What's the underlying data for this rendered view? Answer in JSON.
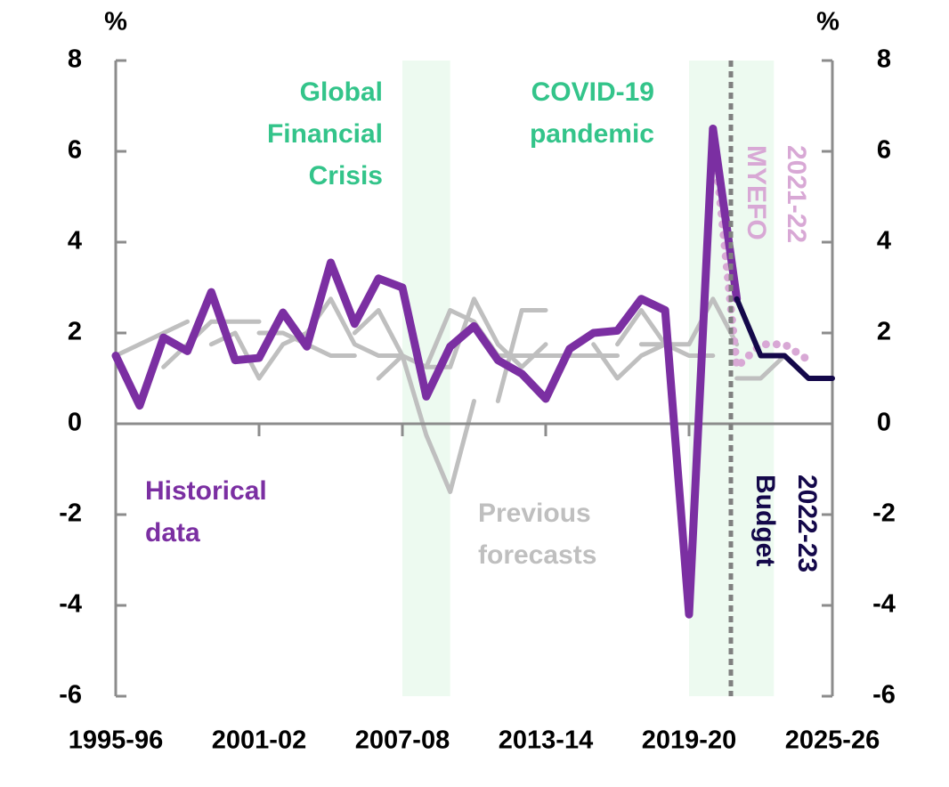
{
  "chart_data": {
    "type": "line",
    "y_label": "%",
    "y2_label": "%",
    "categories": [
      "1995-96",
      null,
      null,
      null,
      null,
      null,
      "2001-02",
      null,
      null,
      null,
      null,
      null,
      "2007-08",
      null,
      null,
      null,
      null,
      null,
      "2013-14",
      null,
      null,
      null,
      null,
      null,
      "2019-20",
      null,
      null,
      null,
      null,
      null,
      "2025-26"
    ],
    "ylim": [
      -6,
      8
    ],
    "yticks": [
      -6,
      -4,
      -2,
      0,
      2,
      4,
      6,
      8
    ],
    "y2lim": [
      -6,
      8
    ],
    "y2ticks": [
      -6,
      -4,
      -2,
      0,
      2,
      4,
      6,
      8
    ],
    "series": [
      {
        "color": "#bfbfbf",
        "values": [
          1.5,
          1.75,
          2.0,
          2.25,
          null,
          null,
          null,
          null,
          null,
          null,
          null,
          null,
          null,
          null,
          null,
          null,
          null,
          null,
          null,
          null,
          null,
          null,
          null,
          null,
          null,
          null,
          null,
          null,
          null,
          null,
          null
        ]
      },
      {
        "color": "#bfbfbf",
        "values": [
          null,
          null,
          1.25,
          1.75,
          2.25,
          2.25,
          2.25,
          null,
          null,
          null,
          null,
          null,
          null,
          null,
          null,
          null,
          null,
          null,
          null,
          null,
          null,
          null,
          null,
          null,
          null,
          null,
          null,
          null,
          null,
          null,
          null
        ]
      },
      {
        "color": "#bfbfbf",
        "values": [
          null,
          null,
          null,
          null,
          1.75,
          2.0,
          1.0,
          1.75,
          2.0,
          null,
          null,
          null,
          null,
          null,
          null,
          null,
          null,
          null,
          null,
          null,
          null,
          null,
          null,
          null,
          null,
          null,
          null,
          null,
          null,
          null,
          null
        ]
      },
      {
        "color": "#bfbfbf",
        "values": [
          null,
          null,
          null,
          null,
          null,
          null,
          2.0,
          2.0,
          1.75,
          1.5,
          1.5,
          null,
          null,
          null,
          null,
          null,
          null,
          null,
          null,
          null,
          null,
          null,
          null,
          null,
          null,
          null,
          null,
          null,
          null,
          null,
          null
        ]
      },
      {
        "color": "#bfbfbf",
        "values": [
          null,
          null,
          null,
          null,
          null,
          null,
          null,
          null,
          2.0,
          2.75,
          1.75,
          1.5,
          1.5,
          null,
          null,
          null,
          null,
          null,
          null,
          null,
          null,
          null,
          null,
          null,
          null,
          null,
          null,
          null,
          null,
          null,
          null
        ]
      },
      {
        "color": "#bfbfbf",
        "values": [
          null,
          null,
          null,
          null,
          null,
          null,
          null,
          null,
          null,
          null,
          2.0,
          2.5,
          1.5,
          1.25,
          1.25,
          null,
          null,
          null,
          null,
          null,
          null,
          null,
          null,
          null,
          null,
          null,
          null,
          null,
          null,
          null,
          null
        ]
      },
      {
        "color": "#bfbfbf",
        "values": [
          null,
          null,
          null,
          null,
          null,
          null,
          null,
          null,
          null,
          null,
          null,
          1.0,
          1.5,
          -0.25,
          -1.5,
          0.5,
          null,
          null,
          null,
          null,
          null,
          null,
          null,
          null,
          null,
          null,
          null,
          null,
          null,
          null,
          null
        ]
      },
      {
        "color": "#bfbfbf",
        "values": [
          null,
          null,
          null,
          null,
          null,
          null,
          null,
          null,
          null,
          null,
          null,
          null,
          null,
          1.25,
          2.5,
          2.25,
          1.5,
          1.5,
          null,
          null,
          null,
          null,
          null,
          null,
          null,
          null,
          null,
          null,
          null,
          null,
          null
        ]
      },
      {
        "color": "#bfbfbf",
        "values": [
          null,
          null,
          null,
          null,
          null,
          null,
          null,
          null,
          null,
          null,
          null,
          null,
          null,
          null,
          1.25,
          2.75,
          1.75,
          1.25,
          1.75,
          null,
          null,
          null,
          null,
          null,
          null,
          null,
          null,
          null,
          null,
          null,
          null
        ]
      },
      {
        "color": "#bfbfbf",
        "values": [
          null,
          null,
          null,
          null,
          null,
          null,
          null,
          null,
          null,
          null,
          null,
          null,
          null,
          null,
          null,
          null,
          0.5,
          2.5,
          2.5,
          null,
          null,
          null,
          null,
          null,
          null,
          null,
          null,
          null,
          null,
          null,
          null
        ]
      },
      {
        "color": "#bfbfbf",
        "values": [
          null,
          null,
          null,
          null,
          null,
          null,
          null,
          null,
          null,
          null,
          null,
          null,
          null,
          null,
          null,
          null,
          null,
          1.5,
          1.5,
          1.5,
          1.5,
          1.5,
          null,
          null,
          null,
          null,
          null,
          null,
          null,
          null,
          null
        ]
      },
      {
        "color": "#bfbfbf",
        "values": [
          null,
          null,
          null,
          null,
          null,
          null,
          null,
          null,
          null,
          null,
          null,
          null,
          null,
          null,
          null,
          null,
          null,
          null,
          null,
          null,
          1.75,
          1.0,
          1.5,
          1.75,
          null,
          null,
          null,
          null,
          null,
          null,
          null
        ]
      },
      {
        "color": "#bfbfbf",
        "values": [
          null,
          null,
          null,
          null,
          null,
          null,
          null,
          null,
          null,
          null,
          null,
          null,
          null,
          null,
          null,
          null,
          null,
          null,
          null,
          null,
          null,
          1.75,
          2.5,
          1.75,
          1.5,
          1.5,
          null,
          null,
          null,
          null,
          null
        ]
      },
      {
        "color": "#bfbfbf",
        "values": [
          null,
          null,
          null,
          null,
          null,
          null,
          null,
          null,
          null,
          null,
          null,
          null,
          null,
          null,
          null,
          null,
          null,
          null,
          null,
          null,
          null,
          null,
          1.75,
          1.75,
          1.75,
          2.75,
          1.75,
          null,
          null,
          null,
          null
        ]
      },
      {
        "color": "#bfbfbf",
        "values": [
          null,
          null,
          null,
          null,
          null,
          null,
          null,
          null,
          null,
          null,
          null,
          null,
          null,
          null,
          null,
          null,
          null,
          null,
          null,
          null,
          null,
          null,
          null,
          null,
          null,
          null,
          1.0,
          1.0,
          1.5,
          null,
          null
        ]
      },
      {
        "color": "#d8a8d5",
        "dotted": true,
        "values": [
          null,
          null,
          null,
          null,
          null,
          null,
          null,
          null,
          null,
          null,
          null,
          null,
          null,
          null,
          null,
          null,
          null,
          null,
          null,
          null,
          null,
          null,
          null,
          null,
          null,
          6.5,
          1.25,
          1.75,
          1.75,
          1.4,
          null
        ]
      },
      {
        "color": "#7b2fa2",
        "values": [
          1.5,
          0.4,
          1.9,
          1.6,
          2.9,
          1.4,
          1.45,
          2.45,
          1.7,
          3.55,
          2.2,
          3.2,
          3.0,
          0.6,
          1.7,
          2.15,
          1.4,
          1.1,
          0.55,
          1.65,
          2.0,
          2.05,
          2.75,
          2.5,
          -4.2,
          6.5,
          2.75,
          null,
          null,
          null,
          null
        ]
      },
      {
        "color": "#14084a",
        "values": [
          null,
          null,
          null,
          null,
          null,
          null,
          null,
          null,
          null,
          null,
          null,
          null,
          null,
          null,
          null,
          null,
          null,
          null,
          null,
          null,
          null,
          null,
          null,
          null,
          null,
          null,
          2.75,
          1.5,
          1.5,
          1.0,
          1.0
        ]
      }
    ],
    "annotations": [
      {
        "lines": [
          "Global",
          "Financial",
          "Crisis"
        ],
        "color": "#33c48a"
      },
      {
        "lines": [
          "COVID-19",
          "pandemic"
        ],
        "color": "#33c48a"
      },
      {
        "lines": [
          "Historical",
          "data"
        ],
        "color": "#7b2fa2"
      },
      {
        "lines": [
          "Previous",
          "forecasts"
        ],
        "color": "#bfbfbf"
      },
      {
        "lines": [
          "2021-22",
          "MYEFO"
        ],
        "color": "#d8a8d5"
      },
      {
        "lines": [
          "2022-23",
          "Budget"
        ],
        "color": "#14084a"
      }
    ]
  }
}
